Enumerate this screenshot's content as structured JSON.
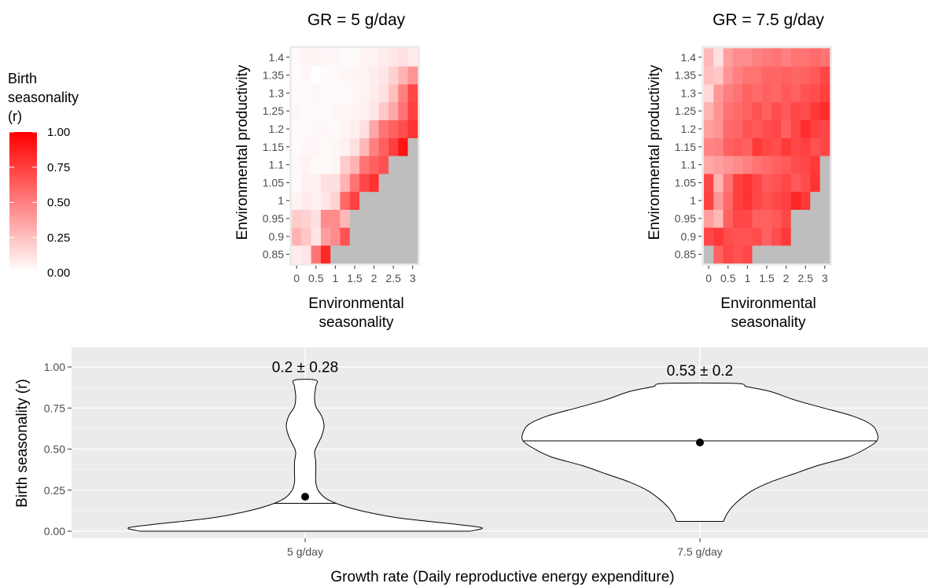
{
  "chart_data": [
    {
      "type": "heatmap",
      "title": "GR = 5 g/day",
      "xlabel": "Environmental seasonality",
      "ylabel": "Environmental productivity",
      "x_ticks": [
        "0",
        "0.5",
        "1",
        "1.5",
        "2",
        "2.5",
        "3"
      ],
      "y_ticks": [
        "0.85",
        "0.9",
        "0.95",
        "1",
        "1.05",
        "1.1",
        "1.15",
        "1.2",
        "1.25",
        "1.3",
        "1.35",
        "1.4"
      ],
      "x_values": [
        0,
        0.25,
        0.5,
        0.75,
        1,
        1.25,
        1.5,
        1.75,
        2,
        2.25,
        2.5,
        2.75,
        3
      ],
      "y_values": [
        0.85,
        0.9,
        0.95,
        1,
        1.05,
        1.1,
        1.15,
        1.2,
        1.25,
        1.3,
        1.35,
        1.4
      ],
      "missing_color": "#bebebe",
      "z_rows_bottom_to_top": [
        [
          0.08,
          0.1,
          0.55,
          0.85,
          null,
          null,
          null,
          null,
          null,
          null,
          null,
          null,
          null
        ],
        [
          0.3,
          0.22,
          0.1,
          0.38,
          0.45,
          0.68,
          null,
          null,
          null,
          null,
          null,
          null,
          null
        ],
        [
          0.2,
          0.18,
          0.12,
          0.45,
          0.45,
          0.28,
          null,
          null,
          null,
          null,
          null,
          null,
          null
        ],
        [
          0.05,
          0.08,
          0.06,
          0.1,
          0.18,
          0.6,
          0.75,
          null,
          null,
          null,
          null,
          null,
          null
        ],
        [
          0.02,
          0.06,
          0.06,
          0.12,
          0.12,
          0.3,
          0.55,
          0.72,
          0.8,
          null,
          null,
          null,
          null
        ],
        [
          0.03,
          0.05,
          0.02,
          0.02,
          0.04,
          0.2,
          0.3,
          0.55,
          0.62,
          0.68,
          null,
          null,
          null
        ],
        [
          0.02,
          0.03,
          0.03,
          0.02,
          0.04,
          0.05,
          0.12,
          0.28,
          0.5,
          0.62,
          0.75,
          0.92,
          null
        ],
        [
          0.02,
          0.02,
          0.03,
          0.03,
          0.02,
          0.04,
          0.06,
          0.12,
          0.35,
          0.55,
          0.62,
          0.7,
          0.8
        ],
        [
          0.03,
          0.02,
          0.02,
          0.02,
          0.03,
          0.03,
          0.04,
          0.06,
          0.1,
          0.22,
          0.35,
          0.55,
          0.75
        ],
        [
          0.02,
          0.02,
          0.03,
          0.02,
          0.02,
          0.02,
          0.03,
          0.05,
          0.08,
          0.12,
          0.25,
          0.5,
          0.72
        ],
        [
          0.02,
          0.03,
          0.0,
          0.02,
          0.02,
          0.03,
          0.04,
          0.05,
          0.07,
          0.1,
          0.18,
          0.3,
          0.42
        ],
        [
          0.02,
          0.04,
          0.04,
          0.03,
          0.03,
          0.02,
          0.02,
          0.04,
          0.05,
          0.07,
          0.1,
          0.12,
          0.08
        ]
      ]
    },
    {
      "type": "heatmap",
      "title": "GR = 7.5 g/day",
      "xlabel": "Environmental seasonality",
      "ylabel": "Environmental productivity",
      "x_ticks": [
        "0",
        "0.5",
        "1",
        "1.5",
        "2",
        "2.5",
        "3"
      ],
      "y_ticks": [
        "0.85",
        "0.9",
        "0.95",
        "1",
        "1.05",
        "1.1",
        "1.15",
        "1.2",
        "1.25",
        "1.3",
        "1.35",
        "1.4"
      ],
      "x_values": [
        0,
        0.25,
        0.5,
        0.75,
        1,
        1.25,
        1.5,
        1.75,
        2,
        2.25,
        2.5,
        2.75,
        3
      ],
      "y_values": [
        0.85,
        0.9,
        0.95,
        1,
        1.05,
        1.1,
        1.15,
        1.2,
        1.25,
        1.3,
        1.35,
        1.4
      ],
      "missing_color": "#bebebe",
      "z_rows_bottom_to_top": [
        [
          null,
          0.62,
          0.72,
          0.68,
          0.72,
          null,
          null,
          null,
          null,
          null,
          null,
          null,
          null
        ],
        [
          0.72,
          0.78,
          0.7,
          0.68,
          0.68,
          0.7,
          0.62,
          0.7,
          0.78,
          null,
          null,
          null,
          null
        ],
        [
          0.38,
          0.28,
          0.62,
          0.72,
          0.72,
          0.62,
          0.62,
          0.65,
          0.72,
          null,
          null,
          null,
          null
        ],
        [
          0.75,
          0.4,
          0.58,
          0.75,
          0.8,
          0.72,
          0.68,
          0.72,
          0.75,
          0.85,
          0.78,
          null,
          null
        ],
        [
          0.72,
          0.3,
          0.55,
          0.75,
          0.8,
          0.72,
          0.65,
          0.68,
          0.72,
          0.65,
          0.7,
          0.8,
          null
        ],
        [
          0.35,
          0.38,
          0.42,
          0.45,
          0.5,
          0.55,
          0.58,
          0.62,
          0.65,
          0.7,
          0.72,
          0.78,
          null
        ],
        [
          0.48,
          0.5,
          0.62,
          0.65,
          0.62,
          0.78,
          0.72,
          0.7,
          0.78,
          0.72,
          0.75,
          0.68,
          0.72
        ],
        [
          0.38,
          0.42,
          0.58,
          0.6,
          0.68,
          0.65,
          0.7,
          0.72,
          0.62,
          0.72,
          0.82,
          0.75,
          0.72
        ],
        [
          0.3,
          0.42,
          0.55,
          0.58,
          0.62,
          0.68,
          0.62,
          0.7,
          0.65,
          0.72,
          0.7,
          0.78,
          0.82
        ],
        [
          0.15,
          0.4,
          0.5,
          0.55,
          0.62,
          0.58,
          0.62,
          0.6,
          0.65,
          0.62,
          0.68,
          0.7,
          0.75
        ],
        [
          0.25,
          0.22,
          0.42,
          0.5,
          0.55,
          0.55,
          0.6,
          0.6,
          0.62,
          0.6,
          0.62,
          0.65,
          0.72
        ],
        [
          0.28,
          0.12,
          0.38,
          0.45,
          0.45,
          0.5,
          0.52,
          0.55,
          0.5,
          0.55,
          0.55,
          0.58,
          0.55
        ]
      ]
    },
    {
      "type": "violin",
      "xlabel": "Growth rate (Daily reproductive energy expenditure)",
      "ylabel": "Birth seasonality (r)",
      "ylim": [
        -0.05,
        1.12
      ],
      "y_ticks": [
        "0.00",
        "0.25",
        "0.50",
        "0.75",
        "1.00"
      ],
      "categories": [
        "5 g/day",
        "7.5 g/day"
      ],
      "violins": [
        {
          "category": "5 g/day",
          "annotation": "0.2 ± 0.28",
          "mean": 0.21,
          "median": 0.17,
          "min": 0.0,
          "max": 0.92,
          "density_profile": [
            [
              0.0,
              0.28
            ],
            [
              0.02,
              0.3
            ],
            [
              0.04,
              0.26
            ],
            [
              0.08,
              0.16
            ],
            [
              0.12,
              0.1
            ],
            [
              0.16,
              0.06
            ],
            [
              0.2,
              0.035
            ],
            [
              0.25,
              0.022
            ],
            [
              0.3,
              0.018
            ],
            [
              0.35,
              0.018
            ],
            [
              0.42,
              0.018
            ],
            [
              0.48,
              0.016
            ],
            [
              0.52,
              0.02
            ],
            [
              0.58,
              0.028
            ],
            [
              0.64,
              0.032
            ],
            [
              0.7,
              0.028
            ],
            [
              0.76,
              0.018
            ],
            [
              0.82,
              0.016
            ],
            [
              0.88,
              0.018
            ],
            [
              0.92,
              0.018
            ]
          ]
        },
        {
          "category": "7.5 g/day",
          "annotation": "0.53 ± 0.2",
          "mean": 0.54,
          "median": 0.55,
          "min": 0.06,
          "max": 0.9,
          "density_profile": [
            [
              0.06,
              0.04
            ],
            [
              0.1,
              0.045
            ],
            [
              0.15,
              0.055
            ],
            [
              0.2,
              0.07
            ],
            [
              0.25,
              0.09
            ],
            [
              0.3,
              0.12
            ],
            [
              0.35,
              0.16
            ],
            [
              0.4,
              0.2
            ],
            [
              0.45,
              0.25
            ],
            [
              0.5,
              0.28
            ],
            [
              0.55,
              0.3
            ],
            [
              0.6,
              0.3
            ],
            [
              0.65,
              0.29
            ],
            [
              0.7,
              0.26
            ],
            [
              0.75,
              0.21
            ],
            [
              0.8,
              0.16
            ],
            [
              0.85,
              0.12
            ],
            [
              0.88,
              0.08
            ],
            [
              0.9,
              0.06
            ]
          ]
        }
      ]
    }
  ],
  "legend": {
    "title_lines": [
      "Birth",
      "seasonality",
      "(r)"
    ],
    "ticks": [
      "0.00",
      "0.25",
      "0.50",
      "0.75",
      "1.00"
    ],
    "low_color": "#ffffff",
    "high_color": "#ff0000"
  },
  "colors": {
    "panel_background": "#ebebeb",
    "grid": "#ffffff",
    "missing": "#bebebe"
  }
}
